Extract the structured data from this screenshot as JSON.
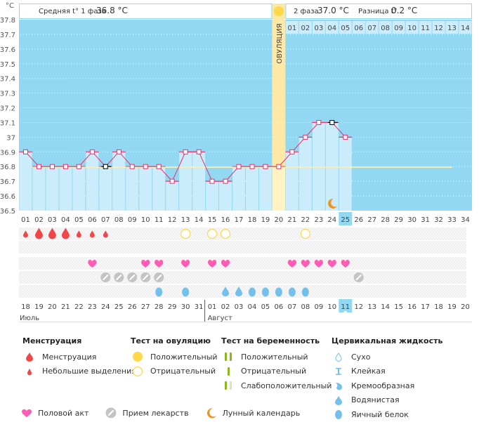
{
  "header": {
    "unit_label": "°C",
    "phase1_label": "Средняя t° 1 фаза",
    "phase1_value": "36.8 °C",
    "phase2_label": "2 фаза",
    "phase2_value": "37.0 °C",
    "diff_label": "Разница t°",
    "diff_value": "0.2 °C",
    "ovulation_label": "ОВУЛЯЦИЯ",
    "phase2_days": [
      "01",
      "02",
      "03",
      "04",
      "05",
      "06",
      "07",
      "08",
      "09",
      "10",
      "11",
      "12",
      "13",
      "14"
    ]
  },
  "chart_data": {
    "type": "line",
    "title": "",
    "xlabel": "",
    "ylabel": "°C",
    "ylim": [
      36.5,
      37.8
    ],
    "yticks": [
      "36.5",
      "36.6",
      "36.7",
      "36.8",
      "36.9",
      "37",
      "37.1",
      "37.2",
      "37.3",
      "37.4",
      "37.5",
      "37.6",
      "37.7",
      "37.8"
    ],
    "grid": true,
    "cycle_days": [
      "01",
      "02",
      "03",
      "04",
      "05",
      "06",
      "07",
      "08",
      "09",
      "10",
      "11",
      "12",
      "13",
      "14",
      "15",
      "16",
      "17",
      "18",
      "19",
      "20",
      "21",
      "22",
      "23",
      "24",
      "25",
      "26",
      "27",
      "28",
      "29",
      "30",
      "31",
      "32",
      "33",
      "34"
    ],
    "series": [
      {
        "name": "Базальная температура",
        "color": "#e8306a",
        "values": [
          36.9,
          36.8,
          36.8,
          36.8,
          36.8,
          36.9,
          36.8,
          36.9,
          36.8,
          36.8,
          36.8,
          36.7,
          36.9,
          36.9,
          36.7,
          36.7,
          36.8,
          36.8,
          36.8,
          36.8,
          36.9,
          37.0,
          37.1,
          37.1,
          37.0
        ]
      }
    ],
    "coverline": 36.8,
    "coverline_until_day": 33,
    "ovulation_day": 20,
    "current_day": 25,
    "highlight_points": [
      7,
      24
    ],
    "moon_day": 24
  },
  "dates": {
    "values": [
      "18",
      "19",
      "20",
      "21",
      "22",
      "23",
      "24",
      "25",
      "26",
      "27",
      "28",
      "29",
      "30",
      "31",
      "01",
      "02",
      "03",
      "04",
      "05",
      "06",
      "07",
      "08",
      "09",
      "10",
      "11",
      "12",
      "13",
      "14",
      "15",
      "16",
      "17",
      "18",
      "19",
      "20"
    ],
    "weekend": [
      false,
      true,
      true,
      false,
      false,
      false,
      false,
      false,
      true,
      true,
      false,
      false,
      false,
      false,
      false,
      true,
      true,
      false,
      false,
      false,
      false,
      false,
      true,
      true,
      false,
      false,
      false,
      false,
      false,
      true,
      true,
      false,
      false,
      false
    ],
    "today_index": 24,
    "month1": "Июль",
    "month2": "Август",
    "month2_start_index": 14
  },
  "markers": {
    "menstruation": [
      "small",
      "big",
      "big",
      "big",
      "small",
      "small",
      "small"
    ],
    "ovulation_test_negative_days": [
      13,
      15,
      16,
      22
    ],
    "intercourse_days": [
      6,
      10,
      11,
      13,
      15,
      16,
      21,
      22,
      23,
      24,
      25
    ],
    "medication_days": [
      7,
      8,
      9,
      10,
      11,
      26
    ],
    "fluid": [
      [
        11,
        "egg"
      ],
      [
        13,
        "egg"
      ],
      [
        16,
        "watery"
      ],
      [
        17,
        "watery"
      ],
      [
        18,
        "egg"
      ],
      [
        19,
        "egg"
      ],
      [
        20,
        "egg"
      ],
      [
        21,
        "egg"
      ],
      [
        22,
        "egg"
      ]
    ]
  },
  "colors": {
    "sky": "#92d8f2",
    "bar": "#cbecfa",
    "line": "#e8306a",
    "ovulation": "#fde9a5",
    "weekend": "#e8306a",
    "menstruation": "#f04848",
    "heart": "#ff5ab4",
    "pill": "#c4c4c4",
    "yellow": "#fcd84a",
    "green": "#8ab81e",
    "drop_blue": "#74bfec",
    "moon": "#f0931c"
  },
  "legend": {
    "menstruation": {
      "title": "Менструация",
      "items": [
        "Менструация",
        "Небольшие выделения"
      ]
    },
    "ovulation_test": {
      "title": "Тест на овуляцию",
      "items": [
        "Положительный",
        "Отрицательный"
      ]
    },
    "pregnancy_test": {
      "title": "Тест на беременность",
      "items": [
        "Положительный",
        "Отрицательный",
        "Слабоположительный"
      ]
    },
    "cervical_fluid": {
      "title": "Цервикальная жидкость",
      "items": [
        "Сухо",
        "Клейкая",
        "Кремообразная",
        "Водянистая",
        "Яичный белок"
      ]
    },
    "bottom": [
      "Половой акт",
      "Прием лекарств",
      "Лунный календарь"
    ]
  }
}
